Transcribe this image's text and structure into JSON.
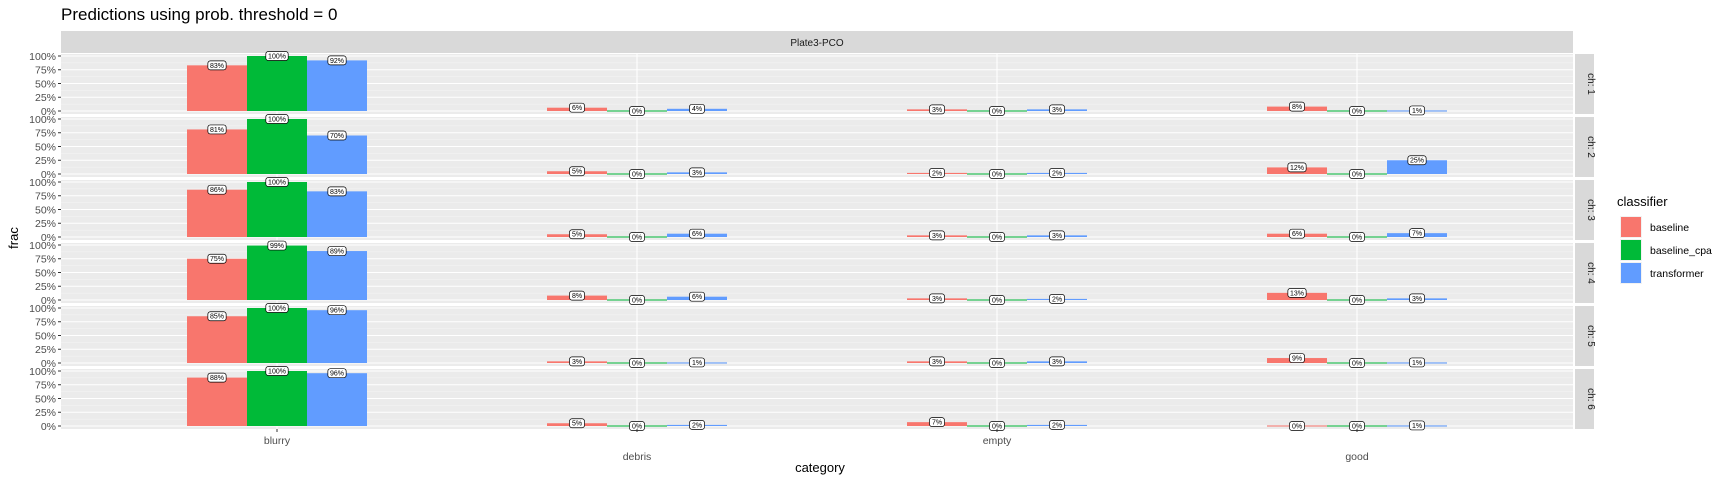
{
  "chart_data": {
    "type": "bar",
    "title": "Predictions using prob. threshold = 0",
    "facet_column": "Plate3-PCO",
    "facet_rows": [
      "ch: 1",
      "ch: 2",
      "ch: 3",
      "ch: 4",
      "ch: 5",
      "ch: 6"
    ],
    "categories": [
      "blurry",
      "debris",
      "empty",
      "good"
    ],
    "xlabel": "category",
    "ylabel": "frac",
    "ylim": [
      0,
      1
    ],
    "y_ticks": [
      "0%",
      "25%",
      "50%",
      "75%",
      "100%"
    ],
    "grid": true,
    "legend": {
      "title": "classifier",
      "position": "right",
      "entries": [
        "baseline",
        "baseline_cpa",
        "transformer"
      ]
    },
    "colors": {
      "baseline": "#F8766D",
      "baseline_cpa": "#00BA38",
      "transformer": "#619CFF",
      "panel_background": "#EBEBEB",
      "strip_background": "#D9D9D9"
    },
    "panels": [
      {
        "row": "ch: 1",
        "series": [
          {
            "name": "baseline",
            "values": [
              0.83,
              0.06,
              0.03,
              0.08
            ],
            "labels": [
              "83%",
              "6%",
              "3%",
              "8%"
            ]
          },
          {
            "name": "baseline_cpa",
            "values": [
              1.0,
              0.0,
              0.0,
              0.0
            ],
            "labels": [
              "100%",
              "0%",
              "0%",
              "0%"
            ]
          },
          {
            "name": "transformer",
            "values": [
              0.92,
              0.04,
              0.03,
              0.01
            ],
            "labels": [
              "92%",
              "4%",
              "3%",
              "1%"
            ]
          }
        ]
      },
      {
        "row": "ch: 2",
        "series": [
          {
            "name": "baseline",
            "values": [
              0.81,
              0.05,
              0.02,
              0.12
            ],
            "labels": [
              "81%",
              "5%",
              "2%",
              "12%"
            ]
          },
          {
            "name": "baseline_cpa",
            "values": [
              1.0,
              0.0,
              0.0,
              0.0
            ],
            "labels": [
              "100%",
              "0%",
              "0%",
              "0%"
            ]
          },
          {
            "name": "transformer",
            "values": [
              0.7,
              0.03,
              0.02,
              0.25
            ],
            "labels": [
              "70%",
              "3%",
              "2%",
              "25%"
            ]
          }
        ]
      },
      {
        "row": "ch: 3",
        "series": [
          {
            "name": "baseline",
            "values": [
              0.86,
              0.05,
              0.03,
              0.06
            ],
            "labels": [
              "86%",
              "5%",
              "3%",
              "6%"
            ]
          },
          {
            "name": "baseline_cpa",
            "values": [
              1.0,
              0.0,
              0.0,
              0.0
            ],
            "labels": [
              "100%",
              "0%",
              "0%",
              "0%"
            ]
          },
          {
            "name": "transformer",
            "values": [
              0.83,
              0.06,
              0.03,
              0.07
            ],
            "labels": [
              "83%",
              "6%",
              "3%",
              "7%"
            ]
          }
        ]
      },
      {
        "row": "ch: 4",
        "series": [
          {
            "name": "baseline",
            "values": [
              0.75,
              0.08,
              0.03,
              0.13
            ],
            "labels": [
              "75%",
              "8%",
              "3%",
              "13%"
            ]
          },
          {
            "name": "baseline_cpa",
            "values": [
              0.99,
              0.0,
              0.0,
              0.0
            ],
            "labels": [
              "99%",
              "0%",
              "0%",
              "0%"
            ]
          },
          {
            "name": "transformer",
            "values": [
              0.89,
              0.06,
              0.02,
              0.03
            ],
            "labels": [
              "89%",
              "6%",
              "2%",
              "3%"
            ]
          }
        ]
      },
      {
        "row": "ch: 5",
        "series": [
          {
            "name": "baseline",
            "values": [
              0.85,
              0.03,
              0.03,
              0.09
            ],
            "labels": [
              "85%",
              "3%",
              "3%",
              "9%"
            ]
          },
          {
            "name": "baseline_cpa",
            "values": [
              1.0,
              0.0,
              0.0,
              0.0
            ],
            "labels": [
              "100%",
              "0%",
              "0%",
              "0%"
            ]
          },
          {
            "name": "transformer",
            "values": [
              0.96,
              0.01,
              0.03,
              0.01
            ],
            "labels": [
              "96%",
              "1%",
              "3%",
              "1%"
            ]
          }
        ]
      },
      {
        "row": "ch: 6",
        "series": [
          {
            "name": "baseline",
            "values": [
              0.88,
              0.05,
              0.07,
              0.0
            ],
            "labels": [
              "88%",
              "5%",
              "7%",
              "0%"
            ]
          },
          {
            "name": "baseline_cpa",
            "values": [
              1.0,
              0.0,
              0.0,
              0.0
            ],
            "labels": [
              "100%",
              "0%",
              "0%",
              "0%"
            ]
          },
          {
            "name": "transformer",
            "values": [
              0.96,
              0.02,
              0.02,
              0.01
            ],
            "labels": [
              "96%",
              "2%",
              "2%",
              "1%"
            ]
          }
        ]
      }
    ]
  }
}
